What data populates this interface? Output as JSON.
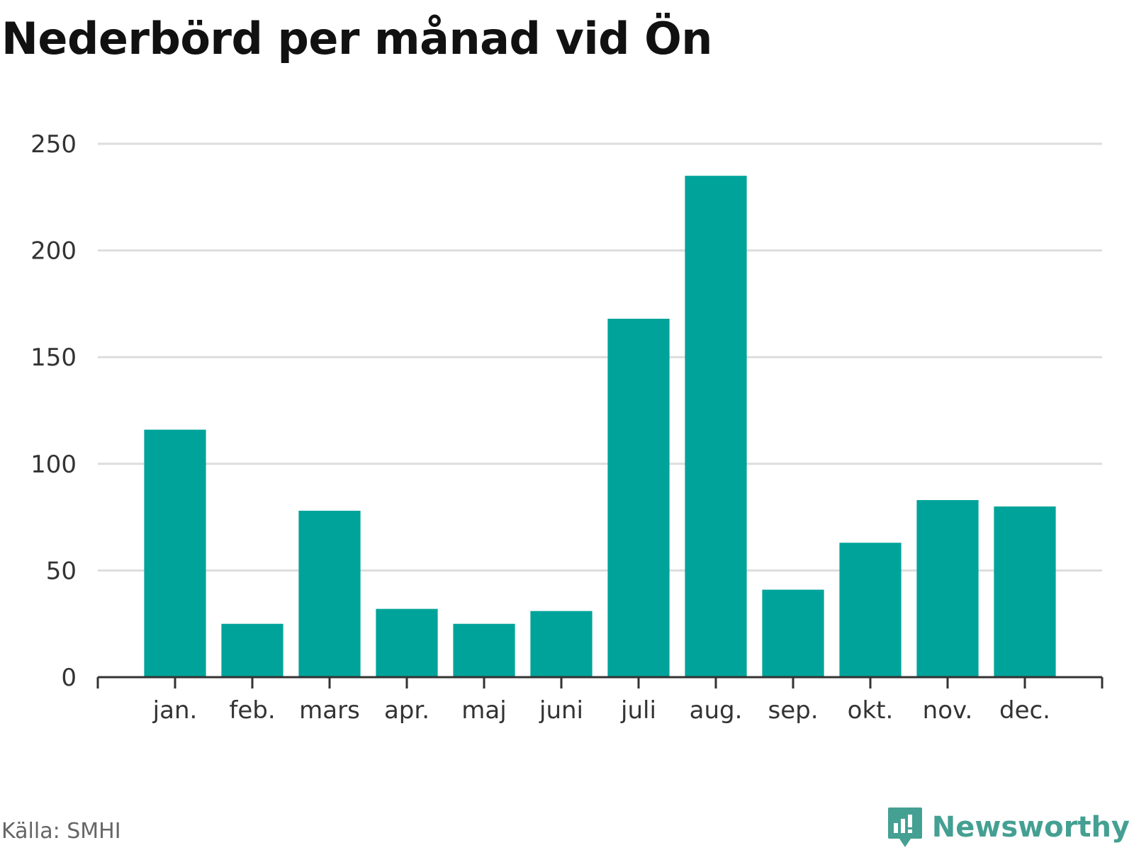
{
  "title": "Nederbörd per månad vid Ön",
  "source": "Källa: SMHI",
  "brand": {
    "name": "Newsworthy",
    "icon": "newsworthy-logo-icon"
  },
  "colors": {
    "bar": "#00a39a",
    "grid": "#dddddd",
    "axis": "#333333",
    "brand": "#44a092"
  },
  "chart_data": {
    "type": "bar",
    "title": "Nederbörd per månad vid Ön",
    "xlabel": "",
    "ylabel": "",
    "categories": [
      "jan.",
      "feb.",
      "mars",
      "apr.",
      "maj",
      "juni",
      "juli",
      "aug.",
      "sep.",
      "okt.",
      "nov.",
      "dec."
    ],
    "values": [
      116,
      25,
      78,
      32,
      25,
      31,
      168,
      235,
      41,
      63,
      83,
      80
    ],
    "ylim": [
      0,
      250
    ],
    "yticks": [
      0,
      50,
      100,
      150,
      200,
      250
    ],
    "yticklabels": [
      "0",
      "50",
      "100",
      "150",
      "200",
      "250"
    ],
    "grid": true,
    "legend": "none"
  }
}
